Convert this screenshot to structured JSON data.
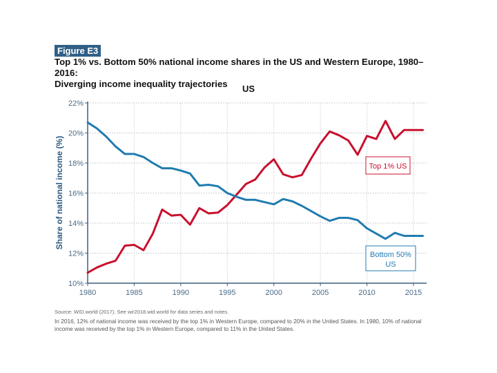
{
  "figure": {
    "tag": "Figure E3",
    "title_line1": "Top 1% vs. Bottom 50% national income shares in the US and Western Europe, 1980–2016:",
    "title_line2": "Diverging income inequality trajectories",
    "source": "Source:  WID.world (2017). See wir2018.wid.world for data series and notes.",
    "note": "In 2016, 12% of national income was received by the top 1% in Western Europe, compared to 20% in the United States. In 1980, 10% of national income was received by the top 1% in Western Europe, compared to 11% in the United States."
  },
  "chart_data": {
    "type": "line",
    "title": "US",
    "xlabel": "",
    "ylabel": "Share of national income (%)",
    "xlim": [
      1980,
      2016
    ],
    "ylim": [
      10,
      22
    ],
    "grid": true,
    "x_ticks": [
      1980,
      1985,
      1990,
      1995,
      2000,
      2005,
      2010,
      2015
    ],
    "y_ticks": [
      "10%",
      "12%",
      "14%",
      "16%",
      "18%",
      "20%",
      "22%"
    ],
    "y_tick_values": [
      10,
      12,
      14,
      16,
      18,
      20,
      22
    ],
    "x": [
      1980,
      1981,
      1982,
      1983,
      1984,
      1985,
      1986,
      1987,
      1988,
      1989,
      1990,
      1991,
      1992,
      1993,
      1994,
      1995,
      1996,
      1997,
      1998,
      1999,
      2000,
      2001,
      2002,
      2003,
      2004,
      2005,
      2006,
      2007,
      2008,
      2009,
      2010,
      2011,
      2012,
      2013,
      2014,
      2015,
      2016
    ],
    "series": [
      {
        "name": "Top 1% US",
        "legend_label": "Top 1% US",
        "color": "#c8102e",
        "values": [
          10.7,
          11.05,
          11.3,
          11.5,
          12.5,
          12.55,
          12.2,
          13.3,
          14.9,
          14.5,
          14.55,
          13.9,
          15.0,
          14.65,
          14.7,
          15.2,
          15.9,
          16.6,
          16.9,
          17.7,
          18.25,
          17.25,
          17.05,
          17.2,
          18.3,
          19.3,
          20.1,
          19.85,
          19.5,
          18.55,
          19.8,
          19.6,
          20.8,
          19.6,
          20.2,
          20.2,
          20.2
        ]
      },
      {
        "name": "Bottom 50% US",
        "legend_label_line1": "Bottom 50%",
        "legend_label_line2": "US",
        "color": "#1f7bb0",
        "values": [
          20.7,
          20.3,
          19.75,
          19.1,
          18.6,
          18.6,
          18.4,
          18.0,
          17.65,
          17.65,
          17.5,
          17.3,
          16.5,
          16.55,
          16.45,
          16.0,
          15.75,
          15.55,
          15.55,
          15.4,
          15.25,
          15.6,
          15.45,
          15.15,
          14.8,
          14.45,
          14.15,
          14.35,
          14.35,
          14.2,
          13.65,
          13.3,
          12.95,
          13.35,
          13.15,
          13.15,
          13.15
        ]
      }
    ]
  }
}
